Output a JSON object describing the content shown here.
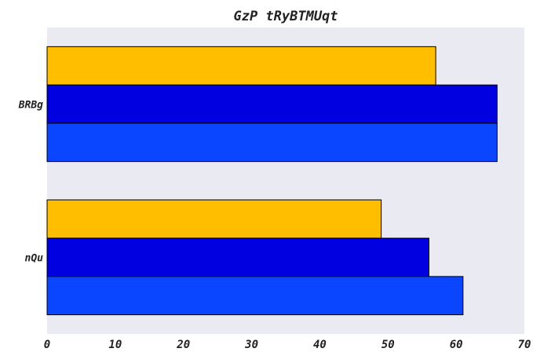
{
  "chart_data": {
    "type": "bar",
    "orientation": "horizontal",
    "title": "GzP tRyBTMUqt",
    "xlabel": "",
    "ylabel": "",
    "categories": [
      "BRBg",
      "nQu"
    ],
    "series": [
      {
        "values": [
          57,
          49
        ],
        "color": "#ffbf00"
      },
      {
        "values": [
          66,
          56
        ],
        "color": "#0000e0"
      },
      {
        "values": [
          66,
          61
        ],
        "color": "#0a45ff"
      }
    ],
    "xlim": [
      0,
      70
    ],
    "xticks": [
      "0",
      "10",
      "20",
      "30",
      "40",
      "50",
      "60",
      "70"
    ],
    "grid": false,
    "legend": "none",
    "background": "#eaeaf2"
  }
}
